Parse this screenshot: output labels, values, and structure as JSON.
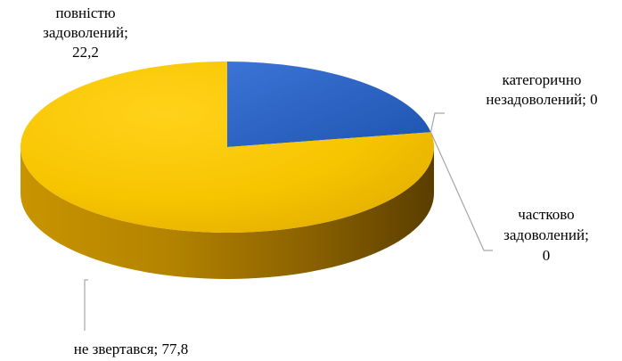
{
  "chart_data": {
    "type": "pie",
    "style": "3d",
    "slices": [
      {
        "label": "категорично незадоволений",
        "value": 0,
        "color": "#2a62c0",
        "label_lines": [
          "категорично",
          "незадоволений; 0"
        ]
      },
      {
        "label": "частково задоволений",
        "value": 0,
        "color": "#2a62c0",
        "label_lines": [
          "частково",
          "задоволений;",
          "0"
        ]
      },
      {
        "label": "повністю задоволений",
        "value": 22.2,
        "color": "#2a62c0",
        "label_lines": [
          "повністю",
          "задоволений;",
          "22,2"
        ]
      },
      {
        "label": "не звертався",
        "value": 77.8,
        "color": "#f5c200",
        "label_lines": [
          "не звертався; 77,8"
        ]
      }
    ],
    "legend": "none"
  }
}
